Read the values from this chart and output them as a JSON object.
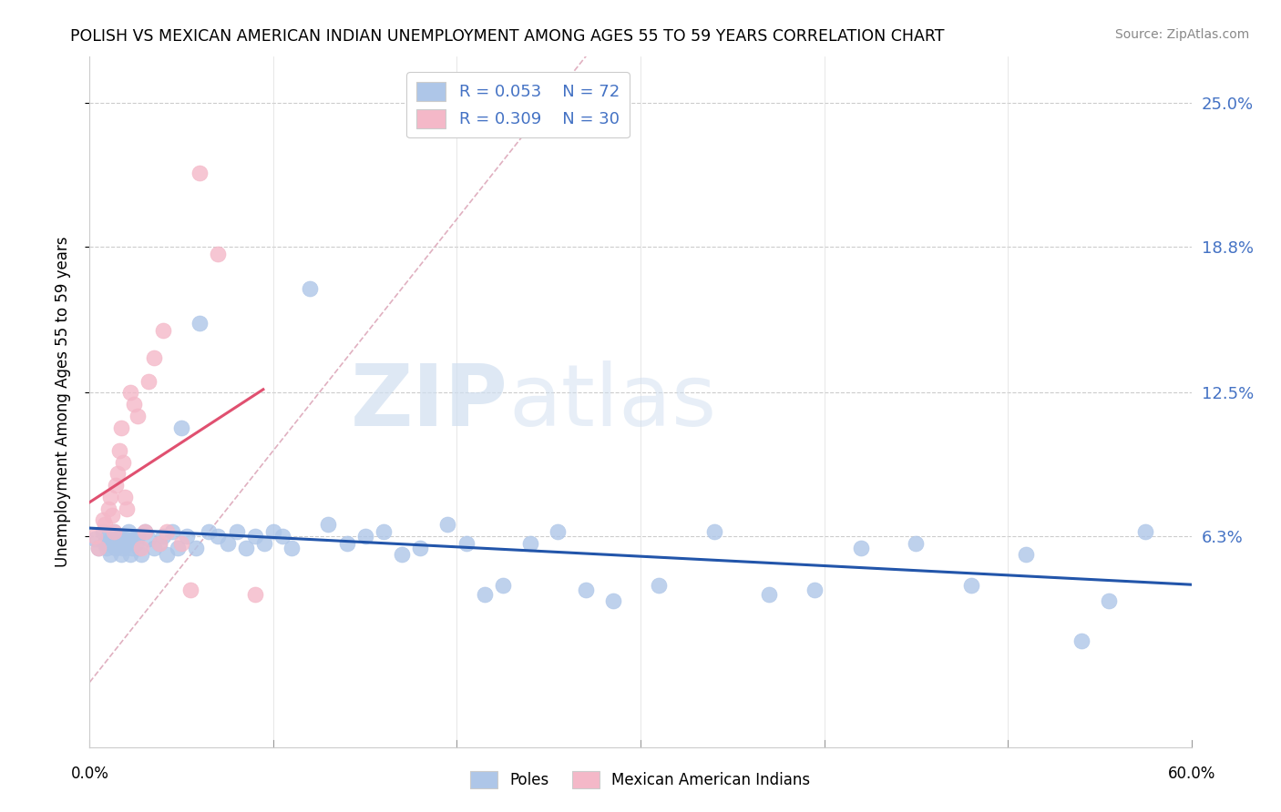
{
  "title": "POLISH VS MEXICAN AMERICAN INDIAN UNEMPLOYMENT AMONG AGES 55 TO 59 YEARS CORRELATION CHART",
  "source": "Source: ZipAtlas.com",
  "ylabel": "Unemployment Among Ages 55 to 59 years",
  "xmin": 0.0,
  "xmax": 0.6,
  "ymin": -0.028,
  "ymax": 0.27,
  "watermark_zip": "ZIP",
  "watermark_atlas": "atlas",
  "y_tick_vals": [
    0.063,
    0.125,
    0.188,
    0.25
  ],
  "y_tick_labs": [
    "6.3%",
    "12.5%",
    "18.8%",
    "25.0%"
  ],
  "poles_color": "#aec6e8",
  "mai_color": "#f4b8c8",
  "poles_edge": "#aec6e8",
  "mai_edge": "#f4b8c8",
  "poles_line_color": "#2255aa",
  "mai_line_color": "#e05070",
  "diag_line_color": "#e0b0c0",
  "legend_color1": "#aec6e8",
  "legend_color2": "#f4b8c8",
  "legend_text_color": "#4472c4",
  "right_axis_color": "#4472c4",
  "poles_x": [
    0.003,
    0.005,
    0.007,
    0.008,
    0.009,
    0.01,
    0.011,
    0.012,
    0.013,
    0.014,
    0.015,
    0.016,
    0.017,
    0.018,
    0.019,
    0.02,
    0.021,
    0.022,
    0.023,
    0.024,
    0.025,
    0.026,
    0.027,
    0.028,
    0.03,
    0.032,
    0.035,
    0.038,
    0.04,
    0.042,
    0.045,
    0.048,
    0.05,
    0.053,
    0.058,
    0.06,
    0.065,
    0.07,
    0.075,
    0.08,
    0.085,
    0.09,
    0.095,
    0.1,
    0.105,
    0.11,
    0.12,
    0.13,
    0.14,
    0.15,
    0.16,
    0.17,
    0.18,
    0.195,
    0.205,
    0.215,
    0.225,
    0.24,
    0.255,
    0.27,
    0.285,
    0.31,
    0.34,
    0.37,
    0.395,
    0.42,
    0.45,
    0.48,
    0.51,
    0.54,
    0.555,
    0.575
  ],
  "poles_y": [
    0.062,
    0.058,
    0.065,
    0.06,
    0.058,
    0.063,
    0.055,
    0.062,
    0.065,
    0.058,
    0.06,
    0.063,
    0.055,
    0.058,
    0.062,
    0.06,
    0.065,
    0.055,
    0.058,
    0.062,
    0.06,
    0.063,
    0.058,
    0.055,
    0.065,
    0.062,
    0.058,
    0.06,
    0.063,
    0.055,
    0.065,
    0.058,
    0.11,
    0.063,
    0.058,
    0.155,
    0.065,
    0.063,
    0.06,
    0.065,
    0.058,
    0.063,
    0.06,
    0.065,
    0.063,
    0.058,
    0.17,
    0.068,
    0.06,
    0.063,
    0.065,
    0.055,
    0.058,
    0.068,
    0.06,
    0.038,
    0.042,
    0.06,
    0.065,
    0.04,
    0.035,
    0.042,
    0.065,
    0.038,
    0.04,
    0.058,
    0.06,
    0.042,
    0.055,
    0.018,
    0.035,
    0.065
  ],
  "mai_x": [
    0.003,
    0.005,
    0.007,
    0.008,
    0.01,
    0.011,
    0.012,
    0.013,
    0.014,
    0.015,
    0.016,
    0.017,
    0.018,
    0.019,
    0.02,
    0.022,
    0.024,
    0.026,
    0.028,
    0.03,
    0.032,
    0.035,
    0.038,
    0.04,
    0.042,
    0.05,
    0.055,
    0.06,
    0.07,
    0.09
  ],
  "mai_y": [
    0.063,
    0.058,
    0.07,
    0.068,
    0.075,
    0.08,
    0.072,
    0.065,
    0.085,
    0.09,
    0.1,
    0.11,
    0.095,
    0.08,
    0.075,
    0.125,
    0.12,
    0.115,
    0.058,
    0.065,
    0.13,
    0.14,
    0.06,
    0.152,
    0.065,
    0.06,
    0.04,
    0.22,
    0.185,
    0.038
  ]
}
